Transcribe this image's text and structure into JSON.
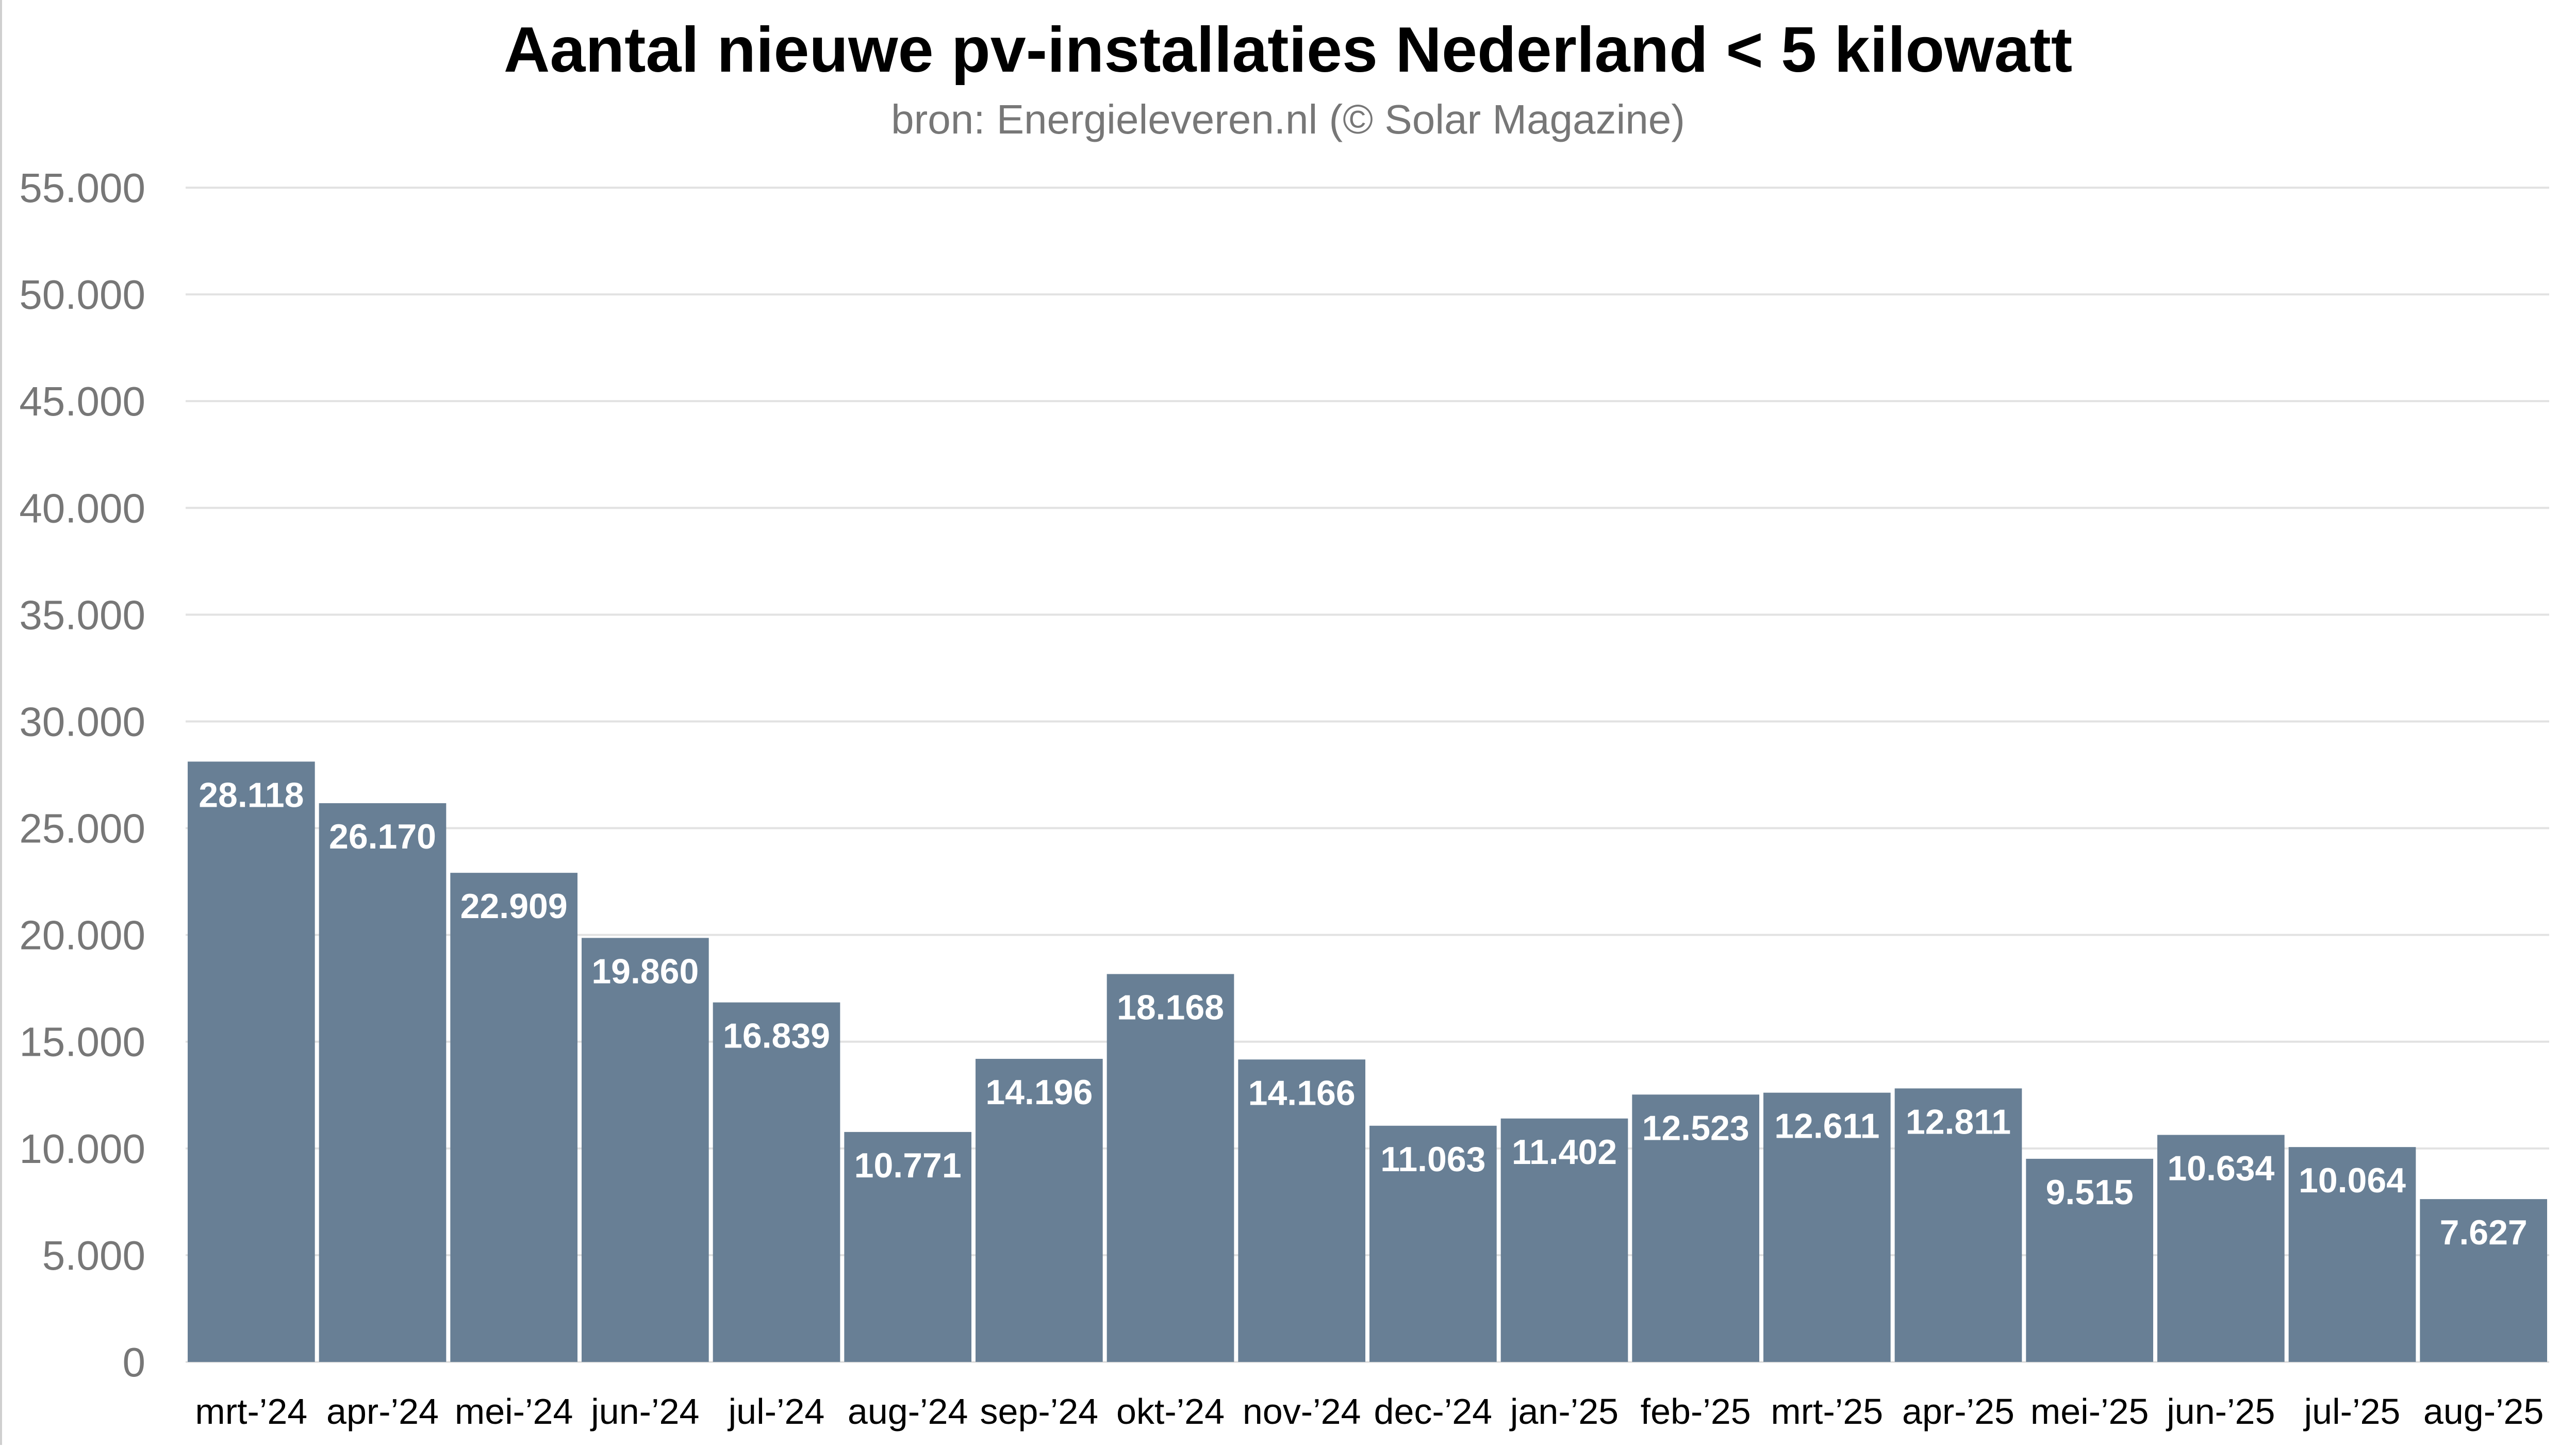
{
  "chart_data": {
    "type": "bar",
    "title": "Aantal nieuwe pv-installaties Nederland < 5 kilowatt",
    "subtitle": "bron: Energieleveren.nl (© Solar Magazine)",
    "xlabel": "",
    "ylabel": "",
    "ylim": [
      0,
      55000
    ],
    "yticks": [
      0,
      5000,
      10000,
      15000,
      20000,
      25000,
      30000,
      35000,
      40000,
      45000,
      50000,
      55000
    ],
    "ytick_labels": [
      "0",
      "5.000",
      "10.000",
      "15.000",
      "20.000",
      "25.000",
      "30.000",
      "35.000",
      "40.000",
      "45.000",
      "50.000",
      "55.000"
    ],
    "grid": true,
    "legend": "none",
    "categories": [
      "mrt-’24",
      "apr-’24",
      "mei-’24",
      "jun-’24",
      "jul-’24",
      "aug-’24",
      "sep-’24",
      "okt-’24",
      "nov-’24",
      "dec-’24",
      "jan-’25",
      "feb-’25",
      "mrt-’25",
      "apr-’25",
      "mei-’25",
      "jun-’25",
      "jul-’25",
      "aug-’25"
    ],
    "values": [
      28118,
      26170,
      22909,
      19860,
      16839,
      10771,
      14196,
      18168,
      14166,
      11063,
      11402,
      12523,
      12611,
      12811,
      9515,
      10634,
      10064,
      7627
    ],
    "data_labels": [
      "28.118",
      "26.170",
      "22.909",
      "19.860",
      "16.839",
      "10.771",
      "14.196",
      "18.168",
      "14.166",
      "11.063",
      "11.402",
      "12.523",
      "12.611",
      "12.811",
      "9.515",
      "10.634",
      "10.064",
      "7.627"
    ],
    "colors": {
      "bar": "#687f95",
      "grid": "#e2e2e2",
      "axis_text": "#777777",
      "category_text": "#000000",
      "label_text": "#ffffff",
      "title": "#000000"
    }
  }
}
